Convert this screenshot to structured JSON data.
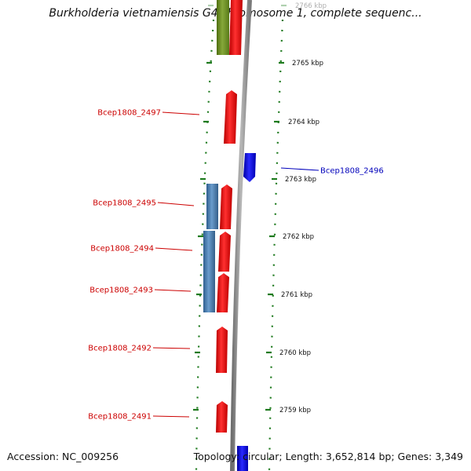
{
  "title": "Burkholderia vietnamiensis G4 chromosome 1, complete sequenc...",
  "footer": {
    "accession": "Accession: NC_009256",
    "topology": "Topology: circular; Length: 3,652,814 bp; Genes: 3,349"
  },
  "colors": {
    "reverse_cds": "#ff1a1a",
    "forward_cds": "#1414ff",
    "gene_block": "#4a7fb5",
    "olive_block": "#6b8e23",
    "backbone": "#8c8c8c",
    "ticks": "#1e7a1e",
    "reverse_label": "#cc0000",
    "forward_label": "#0000bb"
  },
  "ticks": [
    {
      "label": "2766 kbp",
      "faded": true
    },
    {
      "label": "2765 kbp",
      "faded": false
    },
    {
      "label": "2764 kbp",
      "faded": false
    },
    {
      "label": "2763 kbp",
      "faded": false
    },
    {
      "label": "2762 kbp",
      "faded": false
    },
    {
      "label": "2761 kbp",
      "faded": false
    },
    {
      "label": "2760 kbp",
      "faded": false
    },
    {
      "label": "2759 kbp",
      "faded": false
    }
  ],
  "genes": [
    {
      "label": "Bcep1808_2497",
      "strand": "reverse"
    },
    {
      "label": "Bcep1808_2496",
      "strand": "forward"
    },
    {
      "label": "Bcep1808_2495",
      "strand": "reverse"
    },
    {
      "label": "Bcep1808_2494",
      "strand": "reverse"
    },
    {
      "label": "Bcep1808_2493",
      "strand": "reverse"
    },
    {
      "label": "Bcep1808_2492",
      "strand": "reverse"
    },
    {
      "label": "Bcep1808_2491",
      "strand": "reverse"
    }
  ]
}
